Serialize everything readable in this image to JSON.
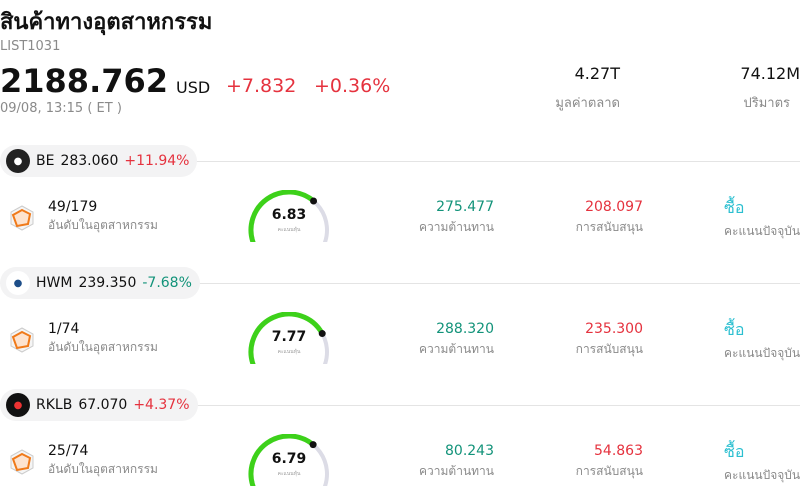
{
  "header": {
    "title": "สินค้าทางอุตสาหกรรม",
    "code": "LIST1031",
    "price": "2188.762",
    "currency": "USD",
    "change": "+7.832",
    "change_pct": "+0.36%",
    "time": "09/08, 13:15 ( ET )",
    "stats": [
      {
        "value": "4.27T",
        "label": "มูลค่าตลาด"
      },
      {
        "value": "74.12M",
        "label": "ปริมาตร"
      }
    ]
  },
  "stocks": [
    {
      "symbol": "BE",
      "price": "283.060",
      "change": "+11.94%",
      "direction": "up",
      "rank": "49/179",
      "rank_label": "อันดับในอุตสาหกรรม",
      "score": 6.83,
      "score_label": "คะแนนหุ้น",
      "resistance": "275.477",
      "resistance_label": "ความต้านทาน",
      "support": "208.097",
      "support_label": "การสนับสนุน",
      "rating": "ซื้อ",
      "rating_label": "คะแนนปัจจุบัน"
    },
    {
      "symbol": "HWM",
      "price": "239.350",
      "change": "-7.68%",
      "direction": "down",
      "rank": "1/74",
      "rank_label": "อันดับในอุตสาหกรรม",
      "score": 7.77,
      "score_label": "คะแนนหุ้น",
      "resistance": "288.320",
      "resistance_label": "ความต้านทาน",
      "support": "235.300",
      "support_label": "การสนับสนุน",
      "rating": "ซื้อ",
      "rating_label": "คะแนนปัจจุบัน"
    },
    {
      "symbol": "RKLB",
      "price": "67.070",
      "change": "+4.37%",
      "direction": "up",
      "rank": "25/74",
      "rank_label": "อันดับในอุตสาหกรรม",
      "score": 6.79,
      "score_label": "คะแนนหุ้น",
      "resistance": "80.243",
      "resistance_label": "ความต้านทาน",
      "support": "54.863",
      "support_label": "การสนับสนุน",
      "rating": "ซื้อ",
      "rating_label": "คะแนนปัจจุบัน"
    }
  ]
}
